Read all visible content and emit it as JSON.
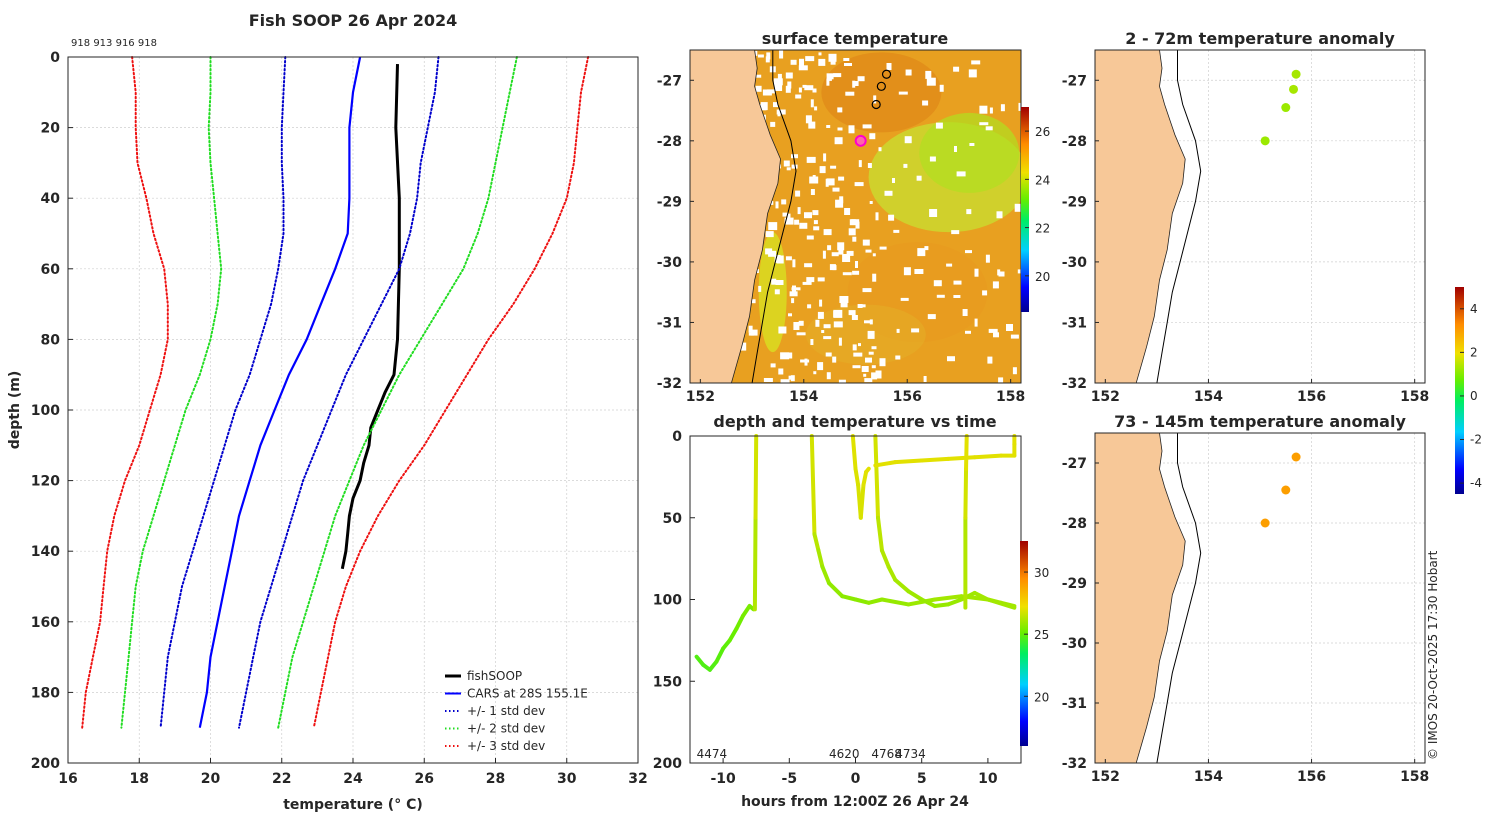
{
  "figure_title": "Fish SOOP 26 Apr 2024",
  "credit": "© IMOS 20-Oct-2025 17:30 Hobart",
  "colors": {
    "fishsoop": "#000000",
    "cars": "#0000ff",
    "std1": "#0000cc",
    "std2": "#22dd22",
    "std3": "#ee1111",
    "land": "#f7c898",
    "sst_base": "#e8a020",
    "anomaly_shallow": "#88e020",
    "anomaly_deep": "#f0a818",
    "marker": "#ff00cc"
  },
  "chart_data": [
    {
      "id": "profile",
      "type": "line",
      "title": "Fish SOOP 26 Apr 2024",
      "top_labels": [
        "918",
        "913",
        "916",
        "918"
      ],
      "xlabel": "temperature (° C)",
      "ylabel": "depth (m)",
      "xlim": [
        16,
        32
      ],
      "ylim": [
        200,
        0
      ],
      "xticks": [
        "16",
        "18",
        "20",
        "22",
        "24",
        "26",
        "28",
        "30",
        "32"
      ],
      "yticks": [
        "0",
        "20",
        "40",
        "60",
        "80",
        "100",
        "120",
        "140",
        "160",
        "180",
        "200"
      ],
      "legend_position": "bottom-right",
      "depth_levels": [
        0,
        10,
        20,
        30,
        40,
        50,
        60,
        70,
        80,
        90,
        100,
        110,
        120,
        130,
        140,
        150,
        160,
        170,
        180,
        190
      ],
      "series": [
        {
          "name": "fishSOOP",
          "style": "solid-thick",
          "color": "#000000",
          "depth": [
            2,
            20,
            40,
            60,
            80,
            90,
            95,
            100,
            105,
            110,
            115,
            120,
            125,
            130,
            135,
            140,
            145
          ],
          "temp": [
            25.25,
            25.2,
            25.3,
            25.3,
            25.25,
            25.15,
            24.9,
            24.7,
            24.5,
            24.45,
            24.3,
            24.2,
            24.0,
            23.9,
            23.85,
            23.8,
            23.7
          ]
        },
        {
          "name": "CARS at 28S 155.1E",
          "style": "solid",
          "color": "#0000ff",
          "temp": [
            24.2,
            24.0,
            23.9,
            23.9,
            23.9,
            23.85,
            23.5,
            23.1,
            22.7,
            22.2,
            21.8,
            21.4,
            21.1,
            20.8,
            20.6,
            20.4,
            20.2,
            20.0,
            19.9,
            19.7
          ]
        },
        {
          "name": "CARS -1 std",
          "style": "dotted",
          "color": "#0000cc",
          "temp": [
            22.1,
            22.05,
            22.0,
            22.0,
            22.05,
            22.05,
            21.9,
            21.7,
            21.4,
            21.1,
            20.7,
            20.4,
            20.1,
            19.8,
            19.5,
            19.2,
            19.0,
            18.8,
            18.7,
            18.6
          ]
        },
        {
          "name": "CARS +1 std",
          "style": "dotted",
          "color": "#0000cc",
          "temp": [
            26.4,
            26.3,
            26.1,
            25.9,
            25.8,
            25.6,
            25.3,
            24.8,
            24.3,
            23.8,
            23.4,
            23.0,
            22.6,
            22.3,
            22.0,
            21.7,
            21.4,
            21.2,
            21.0,
            20.8
          ]
        },
        {
          "name": "CARS -2 std",
          "style": "dotted",
          "color": "#22dd22",
          "temp": [
            20.0,
            20.0,
            19.95,
            20.0,
            20.1,
            20.2,
            20.3,
            20.2,
            20.0,
            19.7,
            19.3,
            19.0,
            18.7,
            18.4,
            18.1,
            17.9,
            17.8,
            17.7,
            17.6,
            17.5
          ]
        },
        {
          "name": "CARS +2 std",
          "style": "dotted",
          "color": "#22dd22",
          "temp": [
            28.6,
            28.4,
            28.2,
            28.0,
            27.8,
            27.5,
            27.1,
            26.5,
            25.9,
            25.3,
            24.8,
            24.3,
            23.9,
            23.5,
            23.2,
            22.9,
            22.6,
            22.3,
            22.1,
            21.9
          ]
        },
        {
          "name": "CARS -3 std",
          "style": "dotted",
          "color": "#ee1111",
          "temp": [
            17.8,
            17.9,
            17.9,
            17.95,
            18.2,
            18.4,
            18.7,
            18.8,
            18.8,
            18.6,
            18.3,
            18.0,
            17.6,
            17.3,
            17.1,
            17.0,
            16.9,
            16.7,
            16.5,
            16.4
          ]
        },
        {
          "name": "CARS +3 std",
          "style": "dotted",
          "color": "#ee1111",
          "temp": [
            30.6,
            30.4,
            30.3,
            30.2,
            30.0,
            29.6,
            29.1,
            28.5,
            27.8,
            27.2,
            26.6,
            26.0,
            25.3,
            24.7,
            24.2,
            23.8,
            23.5,
            23.3,
            23.1,
            22.9
          ]
        }
      ],
      "legend": [
        {
          "label": "fishSOOP",
          "style": "solid-thick",
          "color": "#000000"
        },
        {
          "label": "CARS at 28S 155.1E",
          "style": "solid",
          "color": "#0000ff"
        },
        {
          "label": "+/- 1 std dev",
          "style": "dotted",
          "color": "#0000cc"
        },
        {
          "label": "+/- 2 std dev",
          "style": "dotted",
          "color": "#22dd22"
        },
        {
          "label": "+/- 3 std dev",
          "style": "dotted",
          "color": "#ee1111"
        }
      ]
    },
    {
      "id": "sst",
      "type": "heatmap",
      "title": "surface temperature",
      "xlim": [
        151.8,
        158.2
      ],
      "ylim": [
        -32,
        -26.5
      ],
      "xticks": [
        "152",
        "154",
        "156",
        "158"
      ],
      "yticks": [
        "-27",
        "-28",
        "-29",
        "-30",
        "-31",
        "-32"
      ],
      "colorbar_ticks": [
        "20",
        "22",
        "24",
        "26"
      ],
      "colorbar_range": [
        18.5,
        27
      ],
      "stations": [
        {
          "lon": 155.6,
          "lat": -26.9,
          "symbol": "open-circle"
        },
        {
          "lon": 155.5,
          "lat": -27.1,
          "symbol": "open-circle"
        },
        {
          "lon": 155.4,
          "lat": -27.4,
          "symbol": "open-circle"
        },
        {
          "lon": 155.1,
          "lat": -28.0,
          "symbol": "highlight"
        }
      ]
    },
    {
      "id": "anomaly_shallow",
      "type": "scatter",
      "title": "2 - 72m temperature anomaly",
      "xlim": [
        151.8,
        158.2
      ],
      "ylim": [
        -32,
        -26.5
      ],
      "xticks": [
        "152",
        "154",
        "156",
        "158"
      ],
      "yticks": [
        "-27",
        "-28",
        "-29",
        "-30",
        "-31",
        "-32"
      ],
      "points": [
        {
          "lon": 155.7,
          "lat": -26.9,
          "value": 1.3
        },
        {
          "lon": 155.65,
          "lat": -27.15,
          "value": 1.3
        },
        {
          "lon": 155.5,
          "lat": -27.45,
          "value": 1.2
        },
        {
          "lon": 155.1,
          "lat": -28.0,
          "value": 1.2
        }
      ]
    },
    {
      "id": "anomaly_deep",
      "type": "scatter",
      "title": "73 - 145m temperature anomaly",
      "xlim": [
        151.8,
        158.2
      ],
      "ylim": [
        -32,
        -26.5
      ],
      "xticks": [
        "152",
        "154",
        "156",
        "158"
      ],
      "yticks": [
        "-27",
        "-28",
        "-29",
        "-30",
        "-31",
        "-32"
      ],
      "points": [
        {
          "lon": 155.7,
          "lat": -26.9,
          "value": 3.0
        },
        {
          "lon": 155.5,
          "lat": -27.45,
          "value": 3.0
        },
        {
          "lon": 155.1,
          "lat": -28.0,
          "value": 3.0
        }
      ],
      "colorbar_ticks": [
        "4",
        "2",
        "0",
        "-2",
        "-4"
      ],
      "colorbar_range": [
        -4.5,
        5
      ]
    },
    {
      "id": "depth_time",
      "type": "scatter",
      "title": "depth and temperature vs time",
      "xlabel": "hours from 12:00Z 26 Apr 24",
      "xlim": [
        -12.5,
        12.5
      ],
      "ylim": [
        200,
        0
      ],
      "xticks": [
        "-10",
        "-5",
        "0",
        "5",
        "10"
      ],
      "yticks": [
        "0",
        "50",
        "100",
        "150",
        "200"
      ],
      "colorbar_ticks": [
        "20",
        "25",
        "30"
      ],
      "colorbar_range": [
        16,
        32.5
      ],
      "deployments": [
        {
          "label": "4474",
          "hour": -12
        },
        {
          "label": "4620",
          "hour": -2
        },
        {
          "label": "4768",
          "hour": 1.2
        },
        {
          "label": "4734",
          "hour": 3.0
        }
      ],
      "tracks": [
        {
          "hours": [
            -12,
            -11.5,
            -11,
            -10.5,
            -10,
            -9.5,
            -9,
            -8.5,
            -8,
            -7.7
          ],
          "depth": [
            135,
            140,
            143,
            138,
            130,
            125,
            118,
            110,
            104,
            106
          ],
          "temp": [
            24.8,
            24.7,
            24.7,
            24.8,
            24.9,
            25.0,
            25.2,
            25.3,
            25.4,
            25.4
          ]
        },
        {
          "hours": [
            -7.6,
            -7.55,
            -7.5
          ],
          "depth": [
            106,
            50,
            0
          ],
          "temp": [
            26,
            26.5,
            27
          ]
        },
        {
          "hours": [
            -3.3,
            -3.1,
            -2.8,
            -2.5,
            -2.0,
            -1.0,
            0.0,
            1.0,
            2.0,
            4.0,
            6.0,
            8.0,
            10.0,
            12.0
          ],
          "depth": [
            0,
            60,
            70,
            80,
            90,
            98,
            100,
            102,
            100,
            103,
            100,
            98,
            100,
            105
          ],
          "temp": [
            27,
            26.5,
            26.2,
            26.0,
            25.8,
            25.7,
            25.6,
            25.7,
            25.8,
            25.8,
            26,
            26,
            26,
            26
          ]
        },
        {
          "hours": [
            -0.2,
            0,
            0.2,
            0.4,
            0.6,
            0.8,
            1.0
          ],
          "depth": [
            0,
            20,
            30,
            50,
            30,
            22,
            20
          ],
          "temp": [
            27,
            26.9,
            26.9,
            26.8,
            26.9,
            27,
            27
          ]
        },
        {
          "hours": [
            1.5,
            1.7,
            2,
            2.5,
            3,
            4,
            5,
            6,
            7,
            8,
            9,
            10,
            11,
            12
          ],
          "depth": [
            0,
            50,
            70,
            80,
            88,
            95,
            100,
            104,
            103,
            100,
            96,
            100,
            102,
            104
          ],
          "temp": [
            27,
            26.5,
            26.3,
            26.2,
            26.1,
            26.0,
            25.9,
            25.8,
            25.8,
            25.9,
            26,
            26,
            26,
            26
          ]
        },
        {
          "hours": [
            1.5,
            3,
            5,
            7,
            9,
            11,
            12
          ],
          "depth": [
            18,
            16,
            15,
            14,
            13,
            12,
            12
          ],
          "temp": [
            27,
            27,
            27,
            27,
            27,
            27,
            27
          ]
        },
        {
          "hours": [
            8.3,
            8.3,
            8.35,
            8.4
          ],
          "depth": [
            105,
            50,
            20,
            0
          ],
          "temp": [
            26,
            26.5,
            27,
            27
          ]
        },
        {
          "hours": [
            12,
            12,
            12
          ],
          "depth": [
            12,
            5,
            0
          ],
          "temp": [
            27,
            27,
            27
          ]
        }
      ]
    }
  ]
}
